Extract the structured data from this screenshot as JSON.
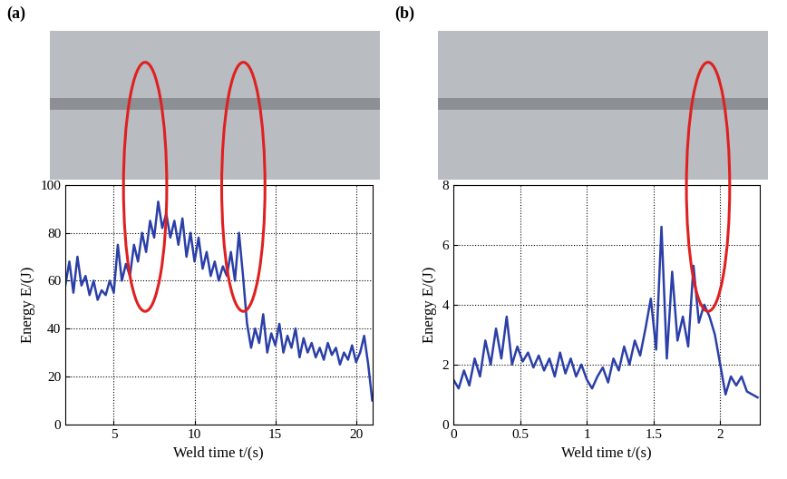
{
  "chart_data": [
    {
      "type": "line",
      "title": "(a)",
      "x_label": "Weld time t/(s)",
      "y_label": "Energy E/(J)",
      "xlim": [
        2,
        21
      ],
      "xticks": [
        5,
        10,
        15,
        20
      ],
      "ylim": [
        0,
        100
      ],
      "yticks": [
        0,
        20,
        40,
        60,
        80,
        100
      ],
      "grid": true,
      "series": [
        {
          "name": "Energy",
          "color": "#2b3fa8",
          "x": [
            2.0,
            2.25,
            2.5,
            2.75,
            3.0,
            3.25,
            3.5,
            3.75,
            4.0,
            4.25,
            4.5,
            4.75,
            5.0,
            5.25,
            5.5,
            5.75,
            6.0,
            6.25,
            6.5,
            6.75,
            7.0,
            7.25,
            7.5,
            7.75,
            8.0,
            8.25,
            8.5,
            8.75,
            9.0,
            9.25,
            9.5,
            9.75,
            10.0,
            10.25,
            10.5,
            10.75,
            11.0,
            11.25,
            11.5,
            11.75,
            12.0,
            12.25,
            12.5,
            12.75,
            13.0,
            13.25,
            13.5,
            13.75,
            14.0,
            14.25,
            14.5,
            14.75,
            15.0,
            15.25,
            15.5,
            15.75,
            16.0,
            16.25,
            16.5,
            16.75,
            17.0,
            17.25,
            17.5,
            17.75,
            18.0,
            18.25,
            18.5,
            18.75,
            19.0,
            19.25,
            19.5,
            19.75,
            20.0,
            20.25,
            20.5,
            20.75,
            21.0
          ],
          "values": [
            58,
            68,
            55,
            70,
            58,
            62,
            54,
            60,
            52,
            56,
            54,
            60,
            55,
            75,
            60,
            67,
            62,
            75,
            68,
            80,
            72,
            85,
            78,
            93,
            82,
            88,
            78,
            85,
            75,
            86,
            70,
            80,
            68,
            78,
            65,
            72,
            62,
            68,
            60,
            66,
            62,
            72,
            60,
            80,
            62,
            42,
            32,
            40,
            34,
            46,
            30,
            38,
            33,
            42,
            30,
            37,
            32,
            40,
            28,
            36,
            30,
            34,
            28,
            32,
            27,
            34,
            29,
            32,
            25,
            30,
            27,
            33,
            26,
            30,
            37,
            25,
            10
          ]
        }
      ]
    },
    {
      "type": "line",
      "title": "(b)",
      "x_label": "Weld time t/(s)",
      "y_label": "Energy E/(J)",
      "xlim": [
        0,
        2.3
      ],
      "xticks": [
        0,
        0.5,
        1,
        1.5,
        2
      ],
      "ylim": [
        0,
        8
      ],
      "yticks": [
        0,
        2,
        4,
        6,
        8
      ],
      "grid": true,
      "series": [
        {
          "name": "Energy",
          "color": "#2b3fa8",
          "x": [
            0.0,
            0.04,
            0.08,
            0.12,
            0.16,
            0.2,
            0.24,
            0.28,
            0.32,
            0.36,
            0.4,
            0.44,
            0.48,
            0.52,
            0.56,
            0.6,
            0.64,
            0.68,
            0.72,
            0.76,
            0.8,
            0.84,
            0.88,
            0.92,
            0.96,
            1.0,
            1.04,
            1.08,
            1.12,
            1.16,
            1.2,
            1.24,
            1.28,
            1.32,
            1.36,
            1.4,
            1.44,
            1.48,
            1.52,
            1.56,
            1.6,
            1.64,
            1.68,
            1.72,
            1.76,
            1.8,
            1.84,
            1.88,
            1.92,
            1.96,
            2.0,
            2.04,
            2.08,
            2.12,
            2.16,
            2.2,
            2.24,
            2.28
          ],
          "values": [
            1.5,
            1.2,
            1.8,
            1.3,
            2.2,
            1.6,
            2.8,
            2.0,
            3.2,
            2.2,
            3.6,
            2.0,
            2.6,
            2.1,
            2.4,
            1.9,
            2.3,
            1.8,
            2.2,
            1.6,
            2.4,
            1.7,
            2.2,
            1.6,
            2.0,
            1.5,
            1.2,
            1.6,
            1.9,
            1.4,
            2.2,
            1.8,
            2.6,
            2.0,
            2.8,
            2.3,
            3.2,
            4.2,
            2.5,
            6.6,
            2.2,
            5.1,
            2.8,
            3.6,
            2.6,
            5.3,
            3.4,
            4.0,
            3.6,
            3.0,
            2.0,
            1.0,
            1.6,
            1.3,
            1.6,
            1.1,
            1.0,
            0.9
          ]
        }
      ]
    }
  ]
}
